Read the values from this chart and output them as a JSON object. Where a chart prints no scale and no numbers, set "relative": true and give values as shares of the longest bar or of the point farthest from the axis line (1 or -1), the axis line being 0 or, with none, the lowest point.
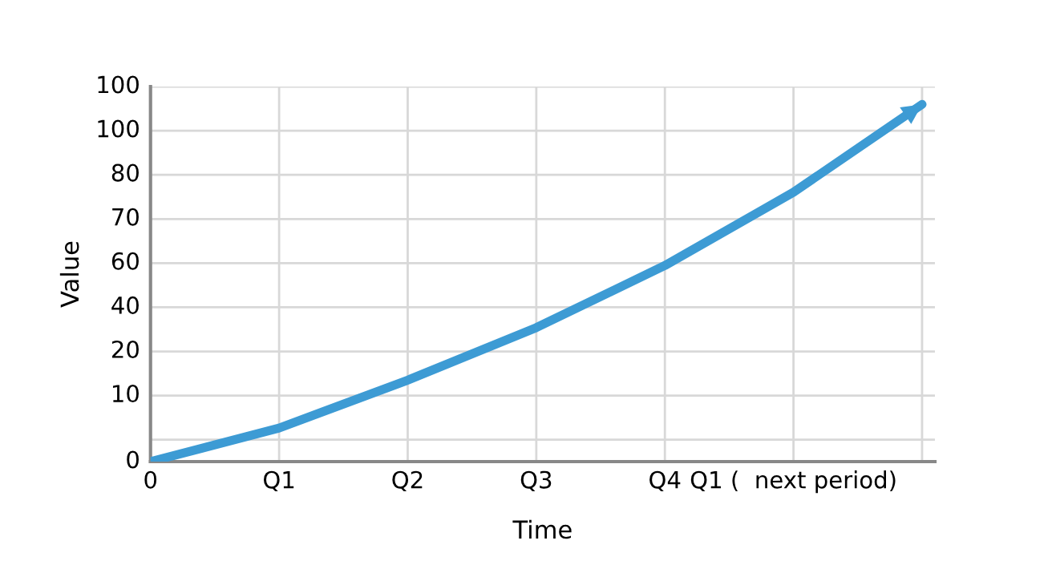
{
  "chart_data": {
    "type": "line",
    "xlabel": "Time",
    "ylabel": "Value",
    "relative": true,
    "categories": [
      "0",
      "Q1",
      "Q2",
      "Q3",
      "Q4",
      "Q1 (  next period)",
      null
    ],
    "series": [
      {
        "color": "#3d9bd4",
        "values": [
          0,
          0.094,
          0.228,
          0.375,
          0.549,
          0.754,
          1
        ]
      }
    ],
    "annotations": [
      "100",
      "100",
      "80",
      "70",
      "60",
      "40",
      "20",
      "10",
      "0"
    ],
    "grid": true,
    "marker": "none",
    "line_style": "solid"
  }
}
